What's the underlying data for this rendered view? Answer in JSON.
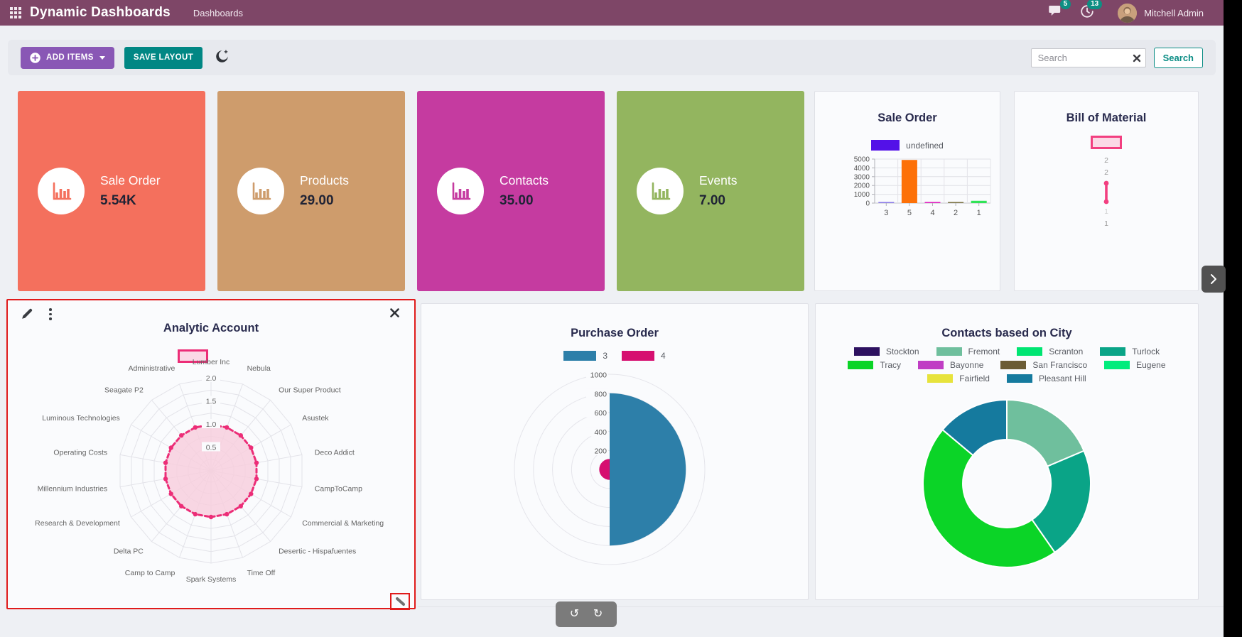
{
  "topbar": {
    "app_title": "Dynamic Dashboards",
    "menu": "Dashboards",
    "messages_badge": "5",
    "activities_badge": "13",
    "user_name": "Mitchell Admin"
  },
  "toolbar": {
    "add_items": "ADD ITEMS",
    "save_layout": "SAVE LAYOUT",
    "search_placeholder": "Search",
    "search_button": "Search"
  },
  "tiles": [
    {
      "label": "Sale Order",
      "value": "5.54K",
      "color": "#f4705d"
    },
    {
      "label": "Products",
      "value": "29.00",
      "color": "#ce9c6c"
    },
    {
      "label": "Contacts",
      "value": "35.00",
      "color": "#c53ba0"
    },
    {
      "label": "Events",
      "value": "7.00",
      "color": "#93b55f"
    }
  ],
  "chart_data": [
    {
      "type": "bar",
      "title": "Sale Order",
      "legend": [
        {
          "label": "undefined",
          "color": "#5311e8"
        }
      ],
      "categories": [
        "3",
        "5",
        "4",
        "2",
        "1"
      ],
      "values": [
        60,
        4900,
        40,
        120,
        260
      ],
      "bar_colors": [
        "#8a7be8",
        "#fd7108",
        "#e01ec0",
        "#7d7547",
        "#31e357"
      ],
      "ylim": [
        0,
        5000
      ],
      "yticks": [
        "0",
        "1000",
        "2000",
        "3000",
        "4000",
        "5000"
      ],
      "xlabel": "",
      "ylabel": ""
    },
    {
      "type": "radar",
      "title": "Bill of Material",
      "legend": [
        {
          "label": "",
          "fill": "#fbd9e6",
          "border": "#f23f80"
        }
      ],
      "labels_top": [
        "2",
        "2"
      ],
      "labels_bottom": [
        "1",
        "1"
      ],
      "values": [
        2,
        1
      ],
      "color": "#f23f80"
    },
    {
      "type": "radar",
      "title": "Analytic Account",
      "legend": [
        {
          "label": "",
          "fill": "#fbd9e6",
          "border": "#ec2d77"
        }
      ],
      "categories": [
        "Lumber Inc",
        "Nebula",
        "Our Super Product",
        "Asustek",
        "Deco Addict",
        "CampToCamp",
        "Commercial & Marketing",
        "Desertic - Hispafuentes",
        "Time Off",
        "Spark Systems",
        "Camp to Camp",
        "Delta PC",
        "Research & Development",
        "Millennium Industries",
        "Operating Costs",
        "Luminous Technologies",
        "Seagate P2",
        "Administrative"
      ],
      "values": [
        1,
        1,
        1,
        1,
        1,
        1,
        1,
        1,
        1,
        1,
        1,
        1,
        1,
        1,
        1,
        1,
        1,
        1
      ],
      "rticks": [
        "0.5",
        "1.0",
        "1.5",
        "2.0"
      ],
      "rmax": 2,
      "color": "#ec2d77",
      "fill": "#f7cddc"
    },
    {
      "type": "polar_area",
      "title": "Purchase Order",
      "series": [
        {
          "name": "3",
          "value": 800,
          "color": "#2d7fa9"
        },
        {
          "name": "4",
          "value": 110,
          "color": "#d60f70"
        }
      ],
      "rticks": [
        "200",
        "400",
        "600",
        "800",
        "1000"
      ],
      "rmax": 1000
    },
    {
      "type": "doughnut",
      "title": "Contacts based on City",
      "legend": [
        {
          "label": "Stockton",
          "color": "#2d1160"
        },
        {
          "label": "Fremont",
          "color": "#6fbf9d"
        },
        {
          "label": "Scranton",
          "color": "#00e572"
        },
        {
          "label": "Turlock",
          "color": "#0aa487"
        },
        {
          "label": "Tracy",
          "color": "#0bd427"
        },
        {
          "label": "Bayonne",
          "color": "#c03ec4"
        },
        {
          "label": "San Francisco",
          "color": "#6b5c35"
        },
        {
          "label": "Eugene",
          "color": "#00ec7c"
        },
        {
          "label": "Fairfield",
          "color": "#e7e33c"
        },
        {
          "label": "Pleasant Hill",
          "color": "#157a9e"
        }
      ],
      "legend_rows": [
        4,
        4,
        2
      ],
      "slices": [
        {
          "label": "Fremont",
          "percent": 18.6,
          "color": "#6fbf9d"
        },
        {
          "label": "Turlock",
          "percent": 21.7,
          "color": "#0aa487"
        },
        {
          "label": "Tracy",
          "percent": 45.8,
          "color": "#0bd427"
        },
        {
          "label": "Pleasant Hill",
          "percent": 13.9,
          "color": "#157a9e"
        }
      ]
    }
  ],
  "controls": {
    "undo_icon": "↺",
    "redo_icon": "↻"
  }
}
